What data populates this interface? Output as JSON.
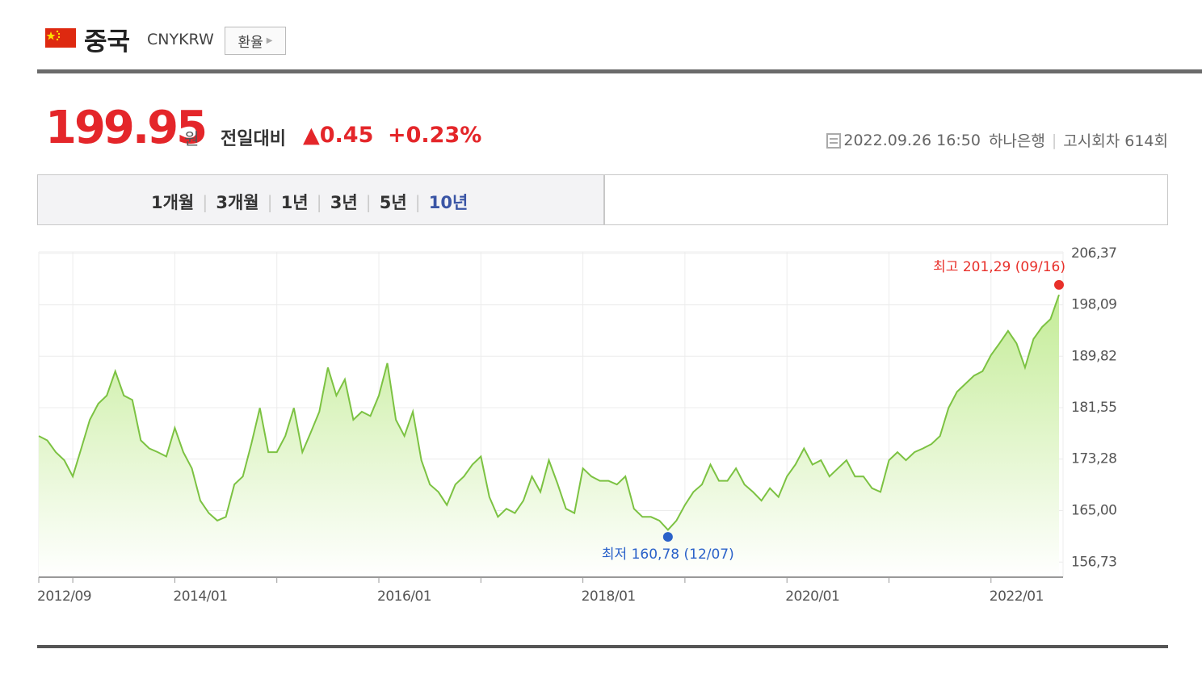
{
  "header": {
    "country": "중국",
    "code": "CNYKRW",
    "button": "환율"
  },
  "quote": {
    "price": "199.95",
    "unit": "원",
    "change_label": "전일대비",
    "change": "▲0.45",
    "change_percent": "+0.23%",
    "datetime": "2022.09.26 16:50",
    "bank": "하나은행",
    "notice": "고시회차 614회"
  },
  "tabs": {
    "items": [
      "1개월",
      "3개월",
      "1년",
      "3년",
      "5년",
      "10년"
    ],
    "active": 5
  },
  "chart_data": {
    "type": "line",
    "color": "#7cc242",
    "fill": true,
    "grid": true,
    "categories": [
      "2012/09",
      null,
      null,
      null,
      null,
      null,
      null,
      null,
      null,
      null,
      null,
      null,
      null,
      null,
      null,
      null,
      "2014/01",
      null,
      null,
      null,
      null,
      null,
      null,
      null,
      null,
      null,
      null,
      null,
      null,
      null,
      null,
      null,
      null,
      null,
      null,
      null,
      null,
      null,
      null,
      null,
      "2016/01",
      null,
      null,
      null,
      null,
      null,
      null,
      null,
      null,
      null,
      null,
      null,
      null,
      null,
      null,
      null,
      null,
      null,
      null,
      null,
      null,
      null,
      null,
      null,
      "2018/01",
      null,
      null,
      null,
      null,
      null,
      null,
      null,
      null,
      null,
      null,
      null,
      null,
      null,
      null,
      null,
      null,
      null,
      null,
      null,
      null,
      null,
      null,
      null,
      "2020/01",
      null,
      null,
      null,
      null,
      null,
      null,
      null,
      null,
      null,
      null,
      null,
      null,
      null,
      null,
      null,
      null,
      null,
      null,
      null,
      null,
      null,
      null,
      null,
      "2022/01",
      null,
      null,
      null,
      null,
      null,
      null,
      null,
      null
    ],
    "values": [
      177.0,
      176.3,
      174.4,
      173.1,
      170.5,
      175.0,
      179.6,
      182.2,
      183.5,
      187.4,
      183.5,
      182.8,
      176.3,
      175.0,
      174.4,
      173.7,
      178.3,
      174.4,
      171.8,
      166.6,
      164.6,
      163.4,
      164.0,
      169.2,
      170.5,
      175.7,
      181.5,
      174.4,
      174.4,
      177.0,
      181.5,
      174.4,
      177.6,
      180.9,
      188.0,
      183.5,
      186.1,
      179.6,
      180.9,
      180.2,
      183.5,
      188.7,
      179.6,
      177.0,
      180.9,
      173.1,
      169.2,
      168.0,
      165.9,
      169.2,
      170.5,
      172.4,
      173.7,
      167.2,
      164.0,
      165.3,
      164.6,
      166.6,
      170.5,
      168.0,
      173.1,
      169.4,
      165.3,
      164.6,
      171.8,
      170.5,
      169.8,
      169.8,
      169.2,
      170.5,
      165.3,
      164.0,
      164.0,
      163.4,
      161.9,
      163.4,
      165.9,
      168.0,
      169.2,
      172.4,
      169.8,
      169.8,
      171.8,
      169.2,
      168.0,
      166.6,
      168.6,
      167.2,
      170.5,
      172.4,
      175.0,
      172.4,
      173.1,
      170.5,
      171.8,
      173.1,
      170.5,
      170.5,
      168.6,
      168.0,
      173.1,
      174.4,
      173.1,
      174.4,
      175.0,
      175.7,
      177.0,
      181.5,
      184.1,
      185.4,
      186.7,
      187.4,
      190.0,
      191.9,
      193.9,
      191.9,
      188.0,
      192.6,
      194.5,
      195.8,
      199.7
    ],
    "ylim": [
      154.3,
      206.6
    ],
    "yticks": [
      {
        "value": 206.37,
        "label": "206,37"
      },
      {
        "value": 198.09,
        "label": "198,09"
      },
      {
        "value": 189.82,
        "label": "189,82"
      },
      {
        "value": 181.55,
        "label": "181,55"
      },
      {
        "value": 173.28,
        "label": "173,28"
      },
      {
        "value": 165.0,
        "label": "165,00"
      },
      {
        "value": 156.73,
        "label": "156,73"
      }
    ],
    "annotations": [
      {
        "label": "최고 201,29 (09/16)",
        "value": 201.29,
        "color": "#e8302a",
        "kind": "max"
      },
      {
        "label": "최저 160,78 (12/07)",
        "value": 160.78,
        "color": "#2b62c9",
        "kind": "min"
      }
    ]
  }
}
